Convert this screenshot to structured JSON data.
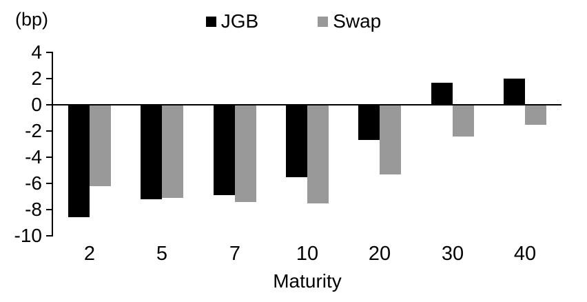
{
  "chart_data": {
    "type": "bar",
    "title": "",
    "unit_label": "(bp)",
    "xlabel": "Maturity",
    "ylabel": "",
    "categories": [
      "2",
      "5",
      "7",
      "10",
      "20",
      "30",
      "40"
    ],
    "series": [
      {
        "name": "JGB",
        "color": "#000000",
        "values": [
          -8.6,
          -7.2,
          -6.9,
          -5.5,
          -2.7,
          1.7,
          2.0
        ]
      },
      {
        "name": "Swap",
        "color": "#999999",
        "values": [
          -6.2,
          -7.1,
          -7.4,
          -7.5,
          -5.3,
          -2.4,
          -1.5
        ]
      }
    ],
    "ylim": [
      -10,
      4
    ],
    "ytick_step": 2,
    "ytick_labels": [
      "4",
      "2",
      "0",
      "-2",
      "-4",
      "-6",
      "-8",
      "-10"
    ],
    "grid": false,
    "legend_position": "top-center",
    "background_color": "#ffffff",
    "axis_color": "#000000"
  }
}
